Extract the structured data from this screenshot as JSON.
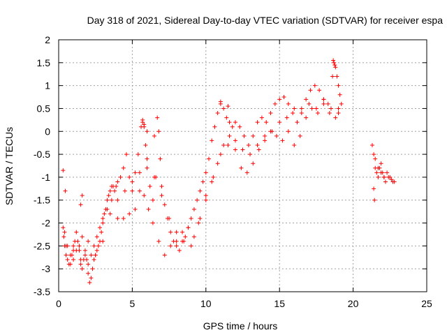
{
  "chart_data": {
    "type": "scatter",
    "title": "Day 318 of 2021, Sidereal Day-to-day VTEC variation (SDTVAR) for receiver espa",
    "xlabel": "GPS time / hours",
    "ylabel": "SDTVAR / TECUs",
    "xlim": [
      0,
      25
    ],
    "ylim": [
      -3.5,
      2
    ],
    "grid": true,
    "marker": "+",
    "color": "#ff0000",
    "x_ticks": [
      0,
      5,
      10,
      15,
      20,
      25
    ],
    "x_tick_labels": [
      "0",
      "5",
      "10",
      "15",
      "20",
      "25"
    ],
    "y_ticks": [
      -3.5,
      -3,
      -2.5,
      -2,
      -1.5,
      -1,
      -0.5,
      0,
      0.5,
      1,
      1.5,
      2
    ],
    "y_tick_labels": [
      "-3.5",
      "-3",
      "-2.5",
      "-2",
      "-1.5",
      "-1",
      "-0.5",
      "0",
      "0.5",
      "1",
      "1.5",
      "2"
    ],
    "series": [
      {
        "name": "SDTVAR",
        "x": [
          0.3,
          0.35,
          0.4,
          0.5,
          0.6,
          0.7,
          0.8,
          0.9,
          1.0,
          1.1,
          1.2,
          1.3,
          1.4,
          1.5,
          1.6,
          1.7,
          1.8,
          1.9,
          2.0,
          2.1,
          2.2,
          2.3,
          2.4,
          2.5,
          2.6,
          2.7,
          2.8,
          2.9,
          3.0,
          3.1,
          3.2,
          3.3,
          3.4,
          3.5,
          3.6,
          3.7,
          3.8,
          3.9,
          4.0,
          4.2,
          4.4,
          4.6,
          4.8,
          5.0,
          5.2,
          5.4,
          5.6,
          5.7,
          5.8,
          5.9,
          6.0,
          6.2,
          6.4,
          6.6,
          6.7,
          6.8,
          6.9,
          7.0,
          7.2,
          7.4,
          7.6,
          7.8,
          8.0,
          8.2,
          8.4,
          8.6,
          8.8,
          9.0,
          9.2,
          9.4,
          9.6,
          9.8,
          10.0,
          10.2,
          10.4,
          10.6,
          10.8,
          11.0,
          11.2,
          11.4,
          11.6,
          11.8,
          12.0,
          12.3,
          12.6,
          12.9,
          13.2,
          13.5,
          13.8,
          14.1,
          14.4,
          14.7,
          15.0,
          15.3,
          15.6,
          15.9,
          16.2,
          16.5,
          16.8,
          17.1,
          17.4,
          17.7,
          18.0,
          18.3,
          18.6,
          18.7,
          18.8,
          18.9,
          19.0,
          19.1,
          19.2,
          21.3,
          21.4,
          21.5,
          21.6,
          21.7,
          21.8,
          21.9,
          22.0,
          22.1,
          22.2,
          22.4,
          22.6,
          22.8,
          0.4,
          0.6,
          0.8,
          1.0,
          1.2,
          1.4,
          1.6,
          1.8,
          2.0,
          2.2,
          2.4,
          2.6,
          2.8,
          3.0,
          3.3,
          3.6,
          4.0,
          4.4,
          4.8,
          5.2,
          5.5,
          5.8,
          6.1,
          6.4,
          6.8,
          7.2,
          7.6,
          8.0,
          8.4,
          8.8,
          9.2,
          9.6,
          10.0,
          10.4,
          10.8,
          11.2,
          11.6,
          12.0,
          12.4,
          12.8,
          13.2,
          13.6,
          14.0,
          14.4,
          14.8,
          15.2,
          15.6,
          16.0,
          16.4,
          16.8,
          17.2,
          17.6,
          18.0,
          18.4,
          18.8,
          19.0,
          21.5,
          21.7,
          21.9,
          22.1,
          22.3,
          22.5,
          22.7,
          0.5,
          1.0,
          1.5,
          2.0,
          2.5,
          3.0,
          3.5,
          4.0,
          4.5,
          5.0,
          5.5,
          6.0,
          6.5,
          7.0,
          7.5,
          8.0,
          8.5,
          9.0,
          9.5,
          10.0,
          10.5,
          11.0,
          11.5,
          12.0,
          12.5,
          13.0,
          13.5,
          14.0,
          14.5,
          15.0,
          15.5,
          16.0,
          16.5,
          17.0,
          17.5,
          18.0,
          18.5,
          19.0,
          0.3,
          0.45,
          1.5,
          1.6,
          6.0,
          6.5,
          5.7,
          5.8,
          21.4,
          21.45,
          11.0,
          11.5,
          18.65,
          18.75
        ],
        "y": [
          -2.1,
          -2.3,
          -2.5,
          -2.7,
          -2.8,
          -2.9,
          -2.9,
          -2.7,
          -2.5,
          -2.4,
          -2.2,
          -2.4,
          -2.6,
          -2.9,
          -3.0,
          -2.8,
          -2.6,
          -2.8,
          -3.1,
          -3.3,
          -3.2,
          -3.0,
          -2.8,
          -2.7,
          -2.6,
          -2.5,
          -2.4,
          -2.2,
          -2.0,
          -1.8,
          -1.7,
          -1.5,
          -1.4,
          -1.3,
          -1.2,
          -1.2,
          -1.3,
          -1.2,
          -1.1,
          -1.0,
          -0.8,
          -0.5,
          -1.0,
          -1.3,
          -0.9,
          -0.5,
          0.1,
          0.2,
          0.1,
          -0.3,
          -0.8,
          -1.2,
          -1.5,
          -1.0,
          0.3,
          0.0,
          -0.6,
          -1.2,
          -1.6,
          -1.9,
          -2.2,
          -2.4,
          -2.5,
          -2.6,
          -2.4,
          -2.3,
          -2.1,
          -1.9,
          -1.7,
          -1.5,
          -1.3,
          -1.1,
          -0.9,
          -0.6,
          -0.2,
          0.1,
          0.4,
          0.6,
          0.5,
          0.3,
          0.2,
          0.1,
          0.2,
          0.1,
          -0.1,
          -0.3,
          -0.1,
          0.2,
          0.3,
          0.2,
          0.4,
          0.6,
          0.7,
          0.75,
          0.6,
          0.4,
          0.2,
          0.5,
          0.7,
          0.9,
          1.0,
          0.9,
          0.7,
          0.6,
          1.2,
          1.5,
          1.4,
          1.2,
          1.0,
          0.8,
          0.6,
          -0.3,
          -0.5,
          -0.8,
          -0.9,
          -1.0,
          -0.8,
          -0.7,
          -0.9,
          -1.0,
          -1.1,
          -1.0,
          -1.05,
          -1.1,
          -2.2,
          -2.5,
          -2.7,
          -2.8,
          -2.6,
          -2.5,
          -2.3,
          -2.7,
          -2.9,
          -2.7,
          -2.5,
          -2.3,
          -2.1,
          -1.9,
          -1.7,
          -1.5,
          -1.9,
          -1.9,
          -1.8,
          -1.7,
          -1.3,
          -1.4,
          -1.7,
          -2.0,
          -2.4,
          -2.7,
          -2.5,
          -2.4,
          -2.2,
          -2.1,
          -2.3,
          -1.9,
          -1.5,
          -1.1,
          -0.7,
          -0.3,
          -0.1,
          -0.4,
          -0.8,
          -0.9,
          -0.7,
          -0.4,
          -0.1,
          0.0,
          -0.1,
          -0.2,
          0.0,
          -0.3,
          -0.1,
          0.3,
          0.5,
          0.4,
          0.6,
          0.4,
          0.3,
          0.4,
          -0.6,
          -0.8,
          -0.9,
          -1.0,
          -0.9,
          -1.0,
          -1.1,
          -2.5,
          -2.6,
          -2.8,
          -2.4,
          -2.7,
          -2.4,
          -1.8,
          -1.5,
          -1.3,
          -1.1,
          -0.9,
          -0.6,
          -1.0,
          -1.4,
          -1.9,
          -2.2,
          -2.4,
          -2.5,
          -2.0,
          -1.4,
          -1.0,
          -0.5,
          -0.3,
          -0.2,
          -0.4,
          -0.5,
          -0.3,
          -0.2,
          0.0,
          0.2,
          0.3,
          0.5,
          0.4,
          0.6,
          0.5,
          0.7,
          0.5,
          0.5,
          -0.85,
          -1.3,
          -1.6,
          -1.4,
          0.0,
          -0.1,
          0.25,
          0.15,
          -1.25,
          -1.5,
          0.65,
          0.55,
          1.55,
          1.45
        ]
      }
    ]
  }
}
